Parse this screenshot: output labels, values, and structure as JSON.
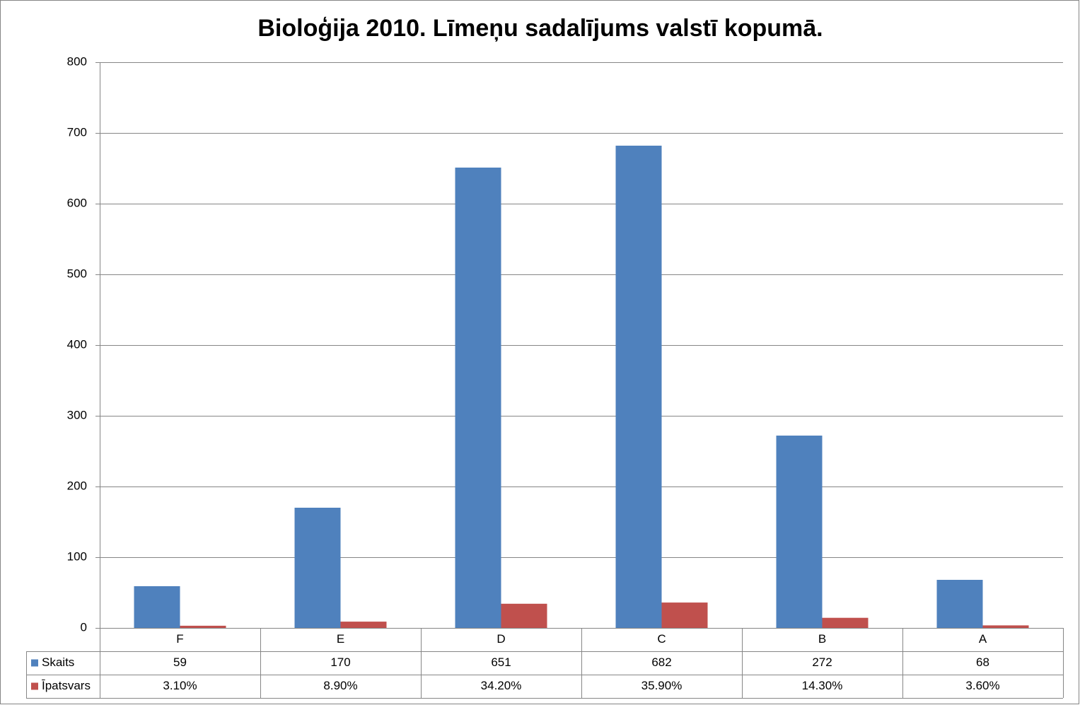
{
  "chart_data": {
    "type": "bar",
    "title": "Bioloģija 2010. Līmeņu sadalījums valstī kopumā.",
    "categories": [
      "F",
      "E",
      "D",
      "C",
      "B",
      "A"
    ],
    "series": [
      {
        "name": "Skaits",
        "color": "#4f81bd",
        "values": [
          59,
          170,
          651,
          682,
          272,
          68
        ]
      },
      {
        "name": "Īpatsvars",
        "color": "#c0504d",
        "values": [
          3.1,
          8.9,
          34.2,
          35.9,
          14.3,
          3.6
        ],
        "value_labels": [
          "3.10%",
          "8.90%",
          "34.20%",
          "35.90%",
          "14.30%",
          "3.60%"
        ]
      }
    ],
    "ylim": [
      0,
      800
    ],
    "yticks": [
      0,
      100,
      200,
      300,
      400,
      500,
      600,
      700,
      800
    ],
    "grid": true,
    "data_table": true
  }
}
